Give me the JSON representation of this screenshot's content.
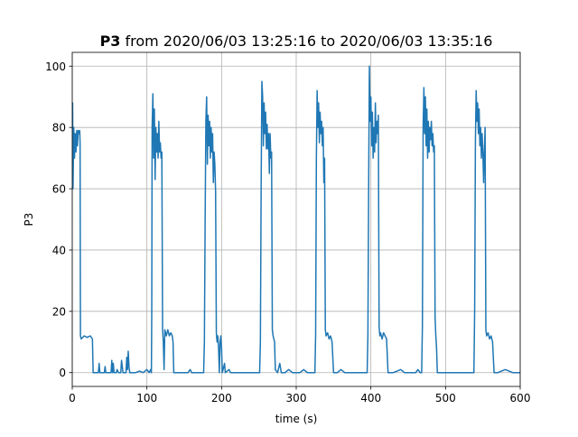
{
  "chart_data": {
    "type": "line",
    "title_bold": "P3",
    "title_rest": " from 2020/06/03 13:25:16 to 2020/06/03 13:35:16",
    "xlabel": "time (s)",
    "ylabel": "P3",
    "xlim": [
      0,
      600
    ],
    "ylim": [
      -4.5,
      104.5
    ],
    "xticks": [
      0,
      100,
      200,
      300,
      400,
      500,
      600
    ],
    "yticks": [
      0,
      20,
      40,
      60,
      80,
      100
    ],
    "grid": true,
    "series": [
      {
        "color": "#1f77b4",
        "points": [
          [
            0,
            62
          ],
          [
            0.5,
            88
          ],
          [
            1,
            60
          ],
          [
            2,
            80
          ],
          [
            3,
            70
          ],
          [
            4,
            78
          ],
          [
            5,
            72
          ],
          [
            6,
            79
          ],
          [
            7,
            74
          ],
          [
            8,
            79
          ],
          [
            9,
            78
          ],
          [
            10,
            79
          ],
          [
            10.5,
            75
          ],
          [
            11,
            12
          ],
          [
            12,
            11
          ],
          [
            16,
            12
          ],
          [
            20,
            11.5
          ],
          [
            24,
            12
          ],
          [
            27,
            11
          ],
          [
            28,
            0
          ],
          [
            35,
            0
          ],
          [
            36,
            3
          ],
          [
            37,
            0
          ],
          [
            43,
            0
          ],
          [
            44,
            2
          ],
          [
            45,
            0
          ],
          [
            52,
            0
          ],
          [
            53,
            4
          ],
          [
            54,
            0
          ],
          [
            55,
            3
          ],
          [
            56,
            0
          ],
          [
            59,
            0
          ],
          [
            60,
            1
          ],
          [
            62,
            0
          ],
          [
            65,
            0
          ],
          [
            66,
            4
          ],
          [
            67,
            2
          ],
          [
            68,
            0
          ],
          [
            72,
            0
          ],
          [
            73,
            5
          ],
          [
            74,
            1
          ],
          [
            75,
            7
          ],
          [
            76,
            2
          ],
          [
            77,
            0
          ],
          [
            85,
            0
          ],
          [
            90,
            0.5
          ],
          [
            95,
            0
          ],
          [
            100,
            1
          ],
          [
            103,
            0
          ],
          [
            105,
            1
          ],
          [
            106,
            0
          ],
          [
            106.5,
            20
          ],
          [
            107,
            80
          ],
          [
            108,
            91
          ],
          [
            109,
            70
          ],
          [
            110,
            86
          ],
          [
            111,
            63
          ],
          [
            112,
            80
          ],
          [
            113,
            72
          ],
          [
            114,
            78
          ],
          [
            115,
            70
          ],
          [
            116,
            82
          ],
          [
            117,
            72
          ],
          [
            118,
            75
          ],
          [
            119,
            70
          ],
          [
            120,
            72
          ],
          [
            121,
            14
          ],
          [
            122,
            10
          ],
          [
            123,
            1
          ],
          [
            124,
            14
          ],
          [
            126,
            12
          ],
          [
            128,
            14
          ],
          [
            130,
            12
          ],
          [
            132,
            13
          ],
          [
            134,
            12
          ],
          [
            135,
            10
          ],
          [
            136,
            0
          ],
          [
            140,
            0
          ],
          [
            150,
            0
          ],
          [
            155,
            0
          ],
          [
            158,
            1
          ],
          [
            160,
            0
          ],
          [
            170,
            0
          ],
          [
            176,
            0
          ],
          [
            177,
            10
          ],
          [
            178,
            50
          ],
          [
            179,
            82
          ],
          [
            180,
            90
          ],
          [
            181,
            68
          ],
          [
            182,
            84
          ],
          [
            183,
            74
          ],
          [
            184,
            82
          ],
          [
            185,
            70
          ],
          [
            186,
            80
          ],
          [
            187,
            72
          ],
          [
            188,
            78
          ],
          [
            189,
            62
          ],
          [
            190,
            72
          ],
          [
            191,
            68
          ],
          [
            192,
            59
          ],
          [
            193,
            13
          ],
          [
            194,
            10
          ],
          [
            195,
            12
          ],
          [
            196,
            8
          ],
          [
            197,
            0
          ],
          [
            198,
            10
          ],
          [
            199,
            12
          ],
          [
            200,
            8
          ],
          [
            201,
            0
          ],
          [
            204,
            3
          ],
          [
            205,
            0
          ],
          [
            210,
            1
          ],
          [
            212,
            0
          ],
          [
            220,
            0
          ],
          [
            225,
            0
          ],
          [
            230,
            0
          ],
          [
            240,
            0
          ],
          [
            248,
            0
          ],
          [
            251,
            0
          ],
          [
            252,
            10
          ],
          [
            253,
            60
          ],
          [
            254,
            95
          ],
          [
            255,
            90
          ],
          [
            256,
            74
          ],
          [
            257,
            88
          ],
          [
            258,
            78
          ],
          [
            259,
            85
          ],
          [
            260,
            73
          ],
          [
            261,
            81
          ],
          [
            262,
            73
          ],
          [
            263,
            78
          ],
          [
            264,
            65
          ],
          [
            265,
            78
          ],
          [
            266,
            70
          ],
          [
            267,
            72
          ],
          [
            268,
            14
          ],
          [
            269,
            12
          ],
          [
            271,
            10
          ],
          [
            272,
            1
          ],
          [
            275,
            0
          ],
          [
            278,
            3
          ],
          [
            280,
            0
          ],
          [
            285,
            0
          ],
          [
            290,
            1
          ],
          [
            295,
            0
          ],
          [
            300,
            0
          ],
          [
            305,
            0
          ],
          [
            310,
            1
          ],
          [
            315,
            0
          ],
          [
            320,
            0
          ],
          [
            325,
            0
          ],
          [
            326,
            12
          ],
          [
            327,
            70
          ],
          [
            328,
            92
          ],
          [
            329,
            80
          ],
          [
            330,
            88
          ],
          [
            331,
            75
          ],
          [
            332,
            85
          ],
          [
            333,
            78
          ],
          [
            334,
            82
          ],
          [
            335,
            74
          ],
          [
            336,
            80
          ],
          [
            337,
            62
          ],
          [
            338,
            70
          ],
          [
            339,
            14
          ],
          [
            340,
            12
          ],
          [
            342,
            13
          ],
          [
            344,
            11
          ],
          [
            346,
            12
          ],
          [
            348,
            10
          ],
          [
            350,
            0
          ],
          [
            355,
            0
          ],
          [
            360,
            1
          ],
          [
            365,
            0
          ],
          [
            370,
            0
          ],
          [
            380,
            0
          ],
          [
            385,
            0
          ],
          [
            390,
            0
          ],
          [
            395,
            0
          ],
          [
            396,
            12
          ],
          [
            397,
            60
          ],
          [
            398,
            100
          ],
          [
            399,
            82
          ],
          [
            400,
            90
          ],
          [
            401,
            74
          ],
          [
            402,
            85
          ],
          [
            403,
            70
          ],
          [
            404,
            80
          ],
          [
            405,
            72
          ],
          [
            406,
            88
          ],
          [
            407,
            75
          ],
          [
            408,
            82
          ],
          [
            409,
            78
          ],
          [
            410,
            84
          ],
          [
            411,
            15
          ],
          [
            412,
            12
          ],
          [
            413,
            13
          ],
          [
            415,
            11
          ],
          [
            417,
            13
          ],
          [
            419,
            12
          ],
          [
            421,
            11
          ],
          [
            423,
            0
          ],
          [
            430,
            0
          ],
          [
            440,
            1
          ],
          [
            445,
            0
          ],
          [
            450,
            0
          ],
          [
            455,
            0
          ],
          [
            460,
            0
          ],
          [
            463,
            1
          ],
          [
            466,
            0
          ],
          [
            468,
            0
          ],
          [
            469,
            15
          ],
          [
            470,
            80
          ],
          [
            471,
            93
          ],
          [
            472,
            78
          ],
          [
            473,
            90
          ],
          [
            474,
            74
          ],
          [
            475,
            86
          ],
          [
            476,
            70
          ],
          [
            477,
            82
          ],
          [
            478,
            72
          ],
          [
            479,
            80
          ],
          [
            480,
            76
          ],
          [
            481,
            82
          ],
          [
            482,
            74
          ],
          [
            483,
            78
          ],
          [
            484,
            72
          ],
          [
            485,
            74
          ],
          [
            486,
            18
          ],
          [
            487,
            12
          ],
          [
            488,
            8
          ],
          [
            489,
            0
          ],
          [
            490,
            0
          ],
          [
            495,
            0
          ],
          [
            500,
            0
          ],
          [
            510,
            0
          ],
          [
            520,
            0
          ],
          [
            535,
            0
          ],
          [
            538,
            0
          ],
          [
            539,
            20
          ],
          [
            540,
            75
          ],
          [
            541,
            92
          ],
          [
            542,
            82
          ],
          [
            543,
            88
          ],
          [
            544,
            78
          ],
          [
            545,
            86
          ],
          [
            546,
            74
          ],
          [
            547,
            80
          ],
          [
            548,
            70
          ],
          [
            549,
            78
          ],
          [
            550,
            72
          ],
          [
            551,
            62
          ],
          [
            552,
            72
          ],
          [
            553,
            80
          ],
          [
            554,
            14
          ],
          [
            555,
            12
          ],
          [
            557,
            13
          ],
          [
            559,
            11
          ],
          [
            561,
            12
          ],
          [
            563,
            10
          ],
          [
            565,
            0
          ],
          [
            570,
            0
          ],
          [
            580,
            1
          ],
          [
            590,
            0
          ],
          [
            600,
            0
          ]
        ]
      }
    ]
  }
}
